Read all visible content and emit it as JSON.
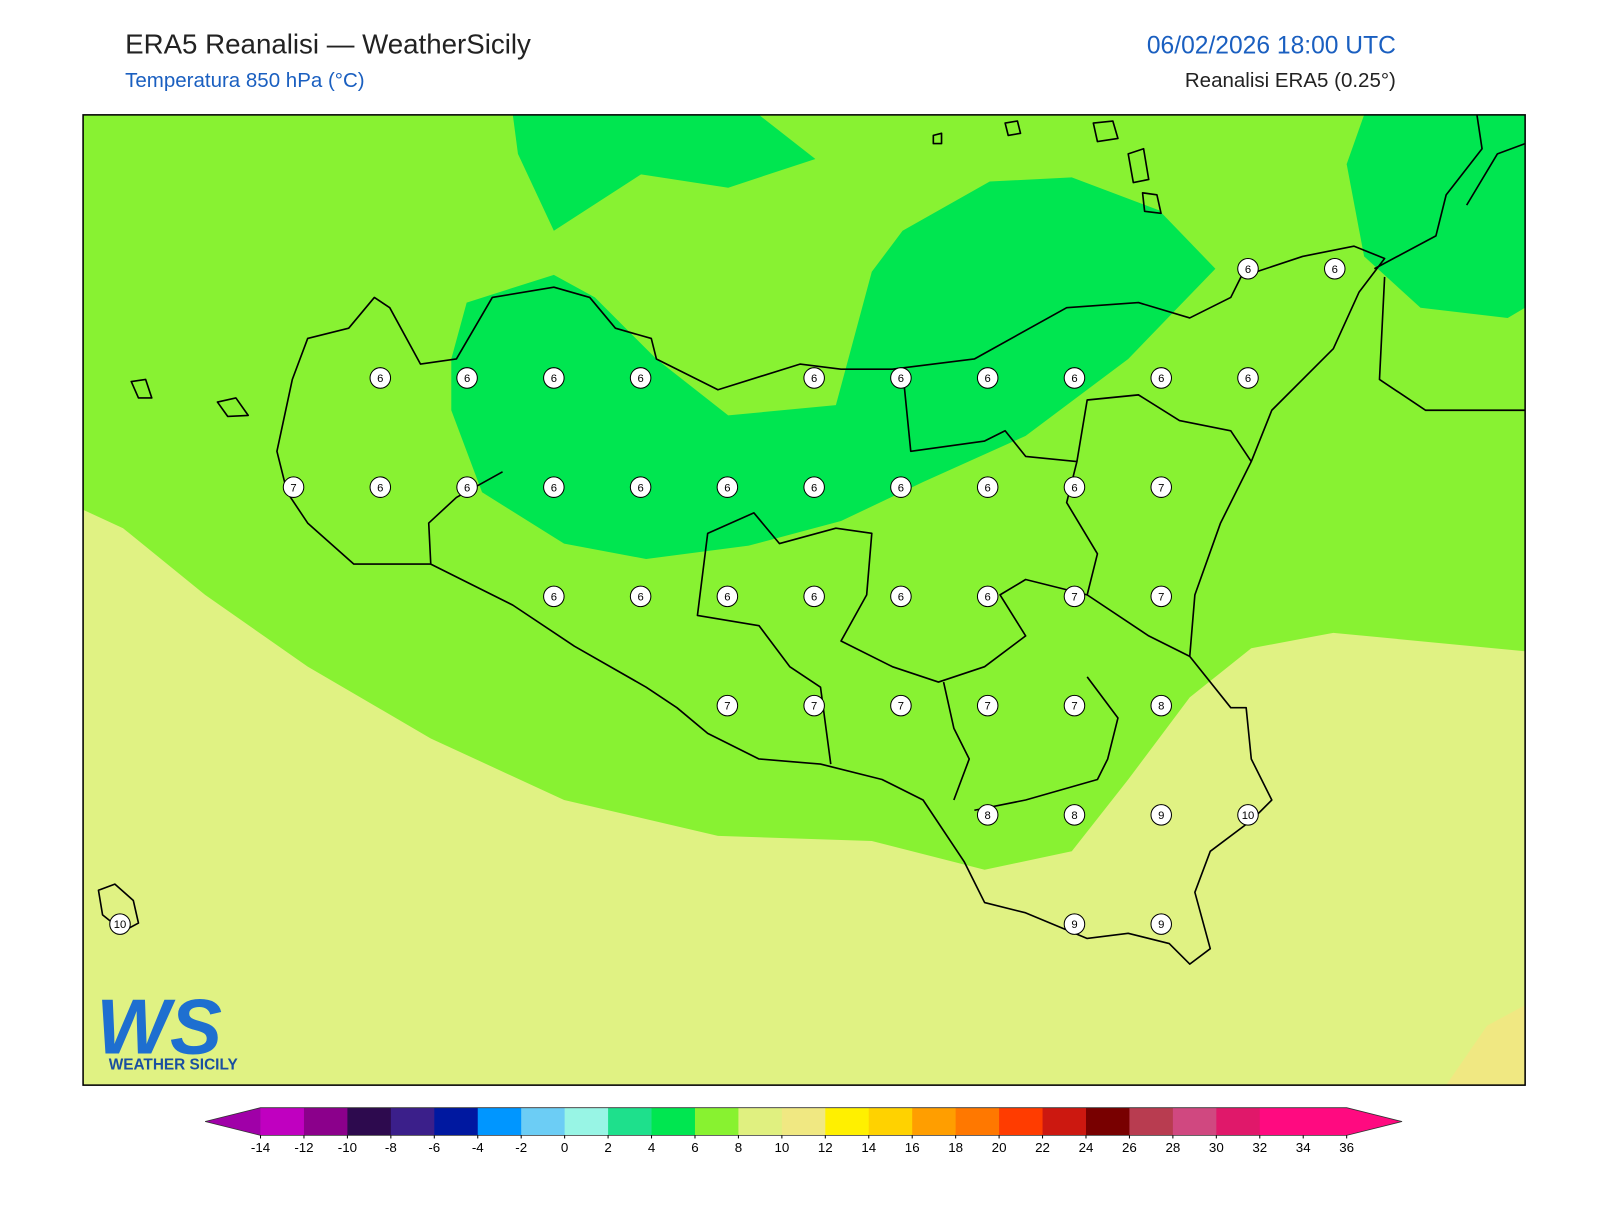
{
  "header": {
    "title": "ERA5 Reanalisi — WeatherSicily",
    "subtitle": "Temperatura 850 hPa (°C)",
    "datetime": "06/02/2026 18:00 UTC",
    "source": "Reanalisi ERA5 (0.25°)"
  },
  "map": {
    "grid": {
      "rows": [
        [
          null,
          null,
          null,
          null,
          null,
          null,
          null,
          null,
          null,
          null,
          null,
          null,
          null,
          6,
          6
        ],
        [
          null,
          null,
          null,
          6,
          6,
          6,
          6,
          null,
          6,
          6,
          6,
          6,
          6,
          6,
          null
        ],
        [
          null,
          null,
          7,
          6,
          6,
          6,
          6,
          6,
          6,
          6,
          6,
          6,
          7,
          null,
          null
        ],
        [
          null,
          null,
          null,
          null,
          null,
          6,
          6,
          6,
          6,
          6,
          6,
          7,
          7,
          null,
          null
        ],
        [
          null,
          null,
          null,
          null,
          null,
          null,
          null,
          7,
          7,
          7,
          7,
          7,
          8,
          null,
          null
        ],
        [
          null,
          null,
          null,
          null,
          null,
          null,
          null,
          null,
          null,
          null,
          8,
          8,
          9,
          10,
          null
        ],
        [
          10,
          null,
          null,
          null,
          null,
          null,
          null,
          null,
          null,
          null,
          null,
          9,
          9,
          null,
          null
        ]
      ]
    }
  },
  "colorbar": {
    "levels": [
      -14,
      -12,
      -10,
      -8,
      -6,
      -4,
      -2,
      0,
      2,
      4,
      6,
      8,
      10,
      12,
      14,
      16,
      18,
      20,
      22,
      24,
      26,
      28,
      30,
      32,
      34,
      36
    ],
    "colors": [
      "#c000c0",
      "#8b008b",
      "#2d0a4e",
      "#3b1f8a",
      "#0018a0",
      "#0096ff",
      "#6ccdf5",
      "#98f5e5",
      "#1ee08c",
      "#00e650",
      "#88f230",
      "#e0f080",
      "#f0e882",
      "#fff000",
      "#ffd200",
      "#ff9e00",
      "#ff7800",
      "#ff3c00",
      "#cc1810",
      "#780000",
      "#b83c50",
      "#d04880",
      "#e0186a",
      "#ff0a80",
      "#ff0a80"
    ],
    "under": "#a000a8",
    "over": "#ff0a80"
  },
  "logo": {
    "mark": "WS",
    "name": "WEATHER SICILY"
  }
}
